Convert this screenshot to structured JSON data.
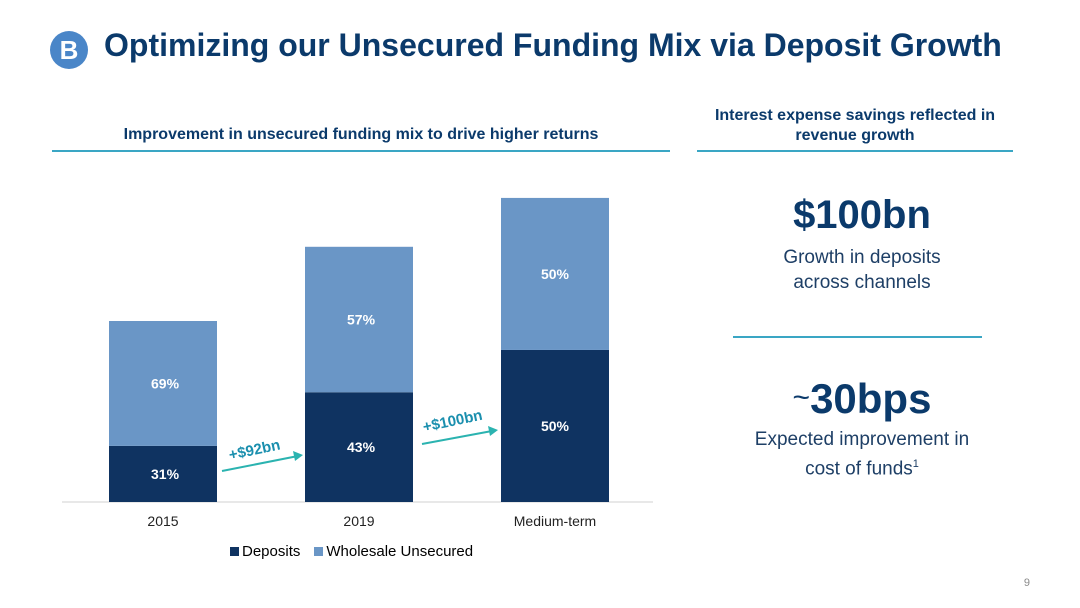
{
  "header": {
    "badge": "B",
    "title": "Optimizing our Unsecured Funding Mix via Deposit Growth"
  },
  "left_panel": {
    "subtitle": "Improvement in unsecured funding mix to drive higher returns"
  },
  "right_panel": {
    "subtitle": "Interest expense savings reflected in revenue growth",
    "stat1": {
      "value": "$100bn",
      "desc_line1": "Growth in deposits",
      "desc_line2": "across channels"
    },
    "stat2": {
      "tilde": "~",
      "value": "30bps",
      "desc_line1": "Expected improvement in",
      "desc_line2": "cost of funds",
      "footnote": "1"
    }
  },
  "arrows": [
    {
      "label": "+$92bn"
    },
    {
      "label": "+$100bn"
    }
  ],
  "legend": [
    {
      "label": "Deposits",
      "color": "#0f3361"
    },
    {
      "label": "Wholesale Unsecured",
      "color": "#6a96c6"
    }
  ],
  "page_number": "9",
  "chart_data": {
    "type": "bar",
    "stacked": true,
    "categories": [
      "2015",
      "2019",
      "Medium-term"
    ],
    "series": [
      {
        "name": "Deposits",
        "values": [
          31,
          43,
          50
        ],
        "labels": [
          "31%",
          "43%",
          "50%"
        ],
        "color": "#0f3361"
      },
      {
        "name": "Wholesale Unsecured",
        "values": [
          69,
          57,
          50
        ],
        "labels": [
          "69%",
          "57%",
          "50%"
        ],
        "color": "#6a96c6"
      }
    ],
    "relative_total_height": [
      1.0,
      1.41,
      1.68
    ],
    "legend_position": "bottom",
    "grid": false
  }
}
